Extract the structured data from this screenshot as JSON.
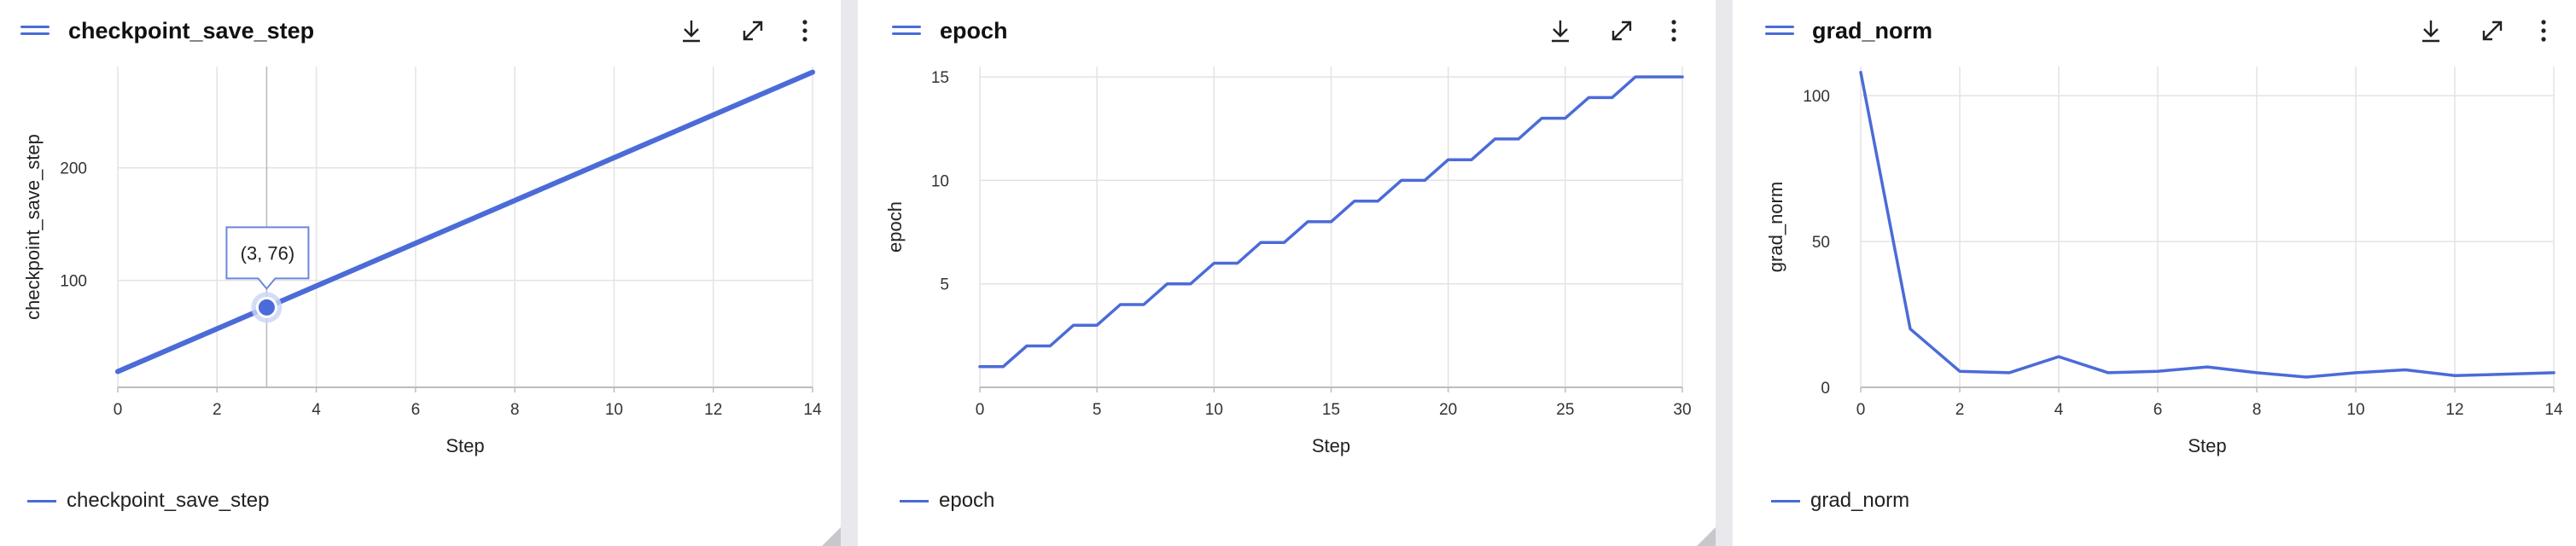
{
  "panels": [
    {
      "title": "checkpoint_save_step",
      "legend_label": "checkpoint_save_step",
      "tooltip": "(3, 76)"
    },
    {
      "title": "epoch",
      "legend_label": "epoch"
    },
    {
      "title": "grad_norm",
      "legend_label": "grad_norm"
    }
  ],
  "icons": {
    "drag": "drag-handle-icon",
    "download": "download-icon",
    "expand": "expand-icon",
    "more": "more-vertical-icon"
  },
  "colors": {
    "series": "#4b6bd8",
    "grid": "#e3e3e3",
    "axis": "#bdbdbd"
  },
  "chart_data": [
    {
      "type": "line",
      "title": "checkpoint_save_step",
      "xlabel": "Step",
      "ylabel": "checkpoint_save_step",
      "xlim": [
        0,
        14
      ],
      "ylim": [
        5,
        290
      ],
      "xticks": [
        0,
        2,
        4,
        6,
        8,
        10,
        12,
        14
      ],
      "yticks": [
        100,
        200
      ],
      "series": [
        {
          "name": "checkpoint_save_step",
          "x": [
            0,
            14
          ],
          "y": [
            19,
            285
          ]
        }
      ],
      "highlight": {
        "x": 3,
        "y": 76,
        "label": "(3, 76)"
      },
      "grid": true,
      "legend": "bottom-left"
    },
    {
      "type": "line",
      "title": "epoch",
      "xlabel": "Step",
      "ylabel": "epoch",
      "xlim": [
        0,
        30
      ],
      "ylim": [
        0,
        15.5
      ],
      "xticks": [
        0,
        5,
        10,
        15,
        20,
        25,
        30
      ],
      "yticks": [
        5,
        10,
        15
      ],
      "series": [
        {
          "name": "epoch",
          "x": [
            0,
            1,
            2,
            3,
            4,
            5,
            6,
            7,
            8,
            9,
            10,
            11,
            12,
            13,
            14,
            15,
            16,
            17,
            18,
            19,
            20,
            21,
            22,
            23,
            24,
            25,
            26,
            27,
            28,
            29,
            30
          ],
          "y": [
            1,
            1,
            2,
            2,
            3,
            3,
            4,
            4,
            5,
            5,
            6,
            6,
            7,
            7,
            8,
            8,
            9,
            9,
            10,
            10,
            11,
            11,
            12,
            12,
            13,
            13,
            14,
            14,
            15,
            15,
            15
          ]
        }
      ],
      "grid": true,
      "legend": "bottom-left"
    },
    {
      "type": "line",
      "title": "grad_norm",
      "xlabel": "Step",
      "ylabel": "grad_norm",
      "xlim": [
        0,
        14
      ],
      "ylim": [
        0,
        110
      ],
      "xticks": [
        0,
        2,
        4,
        6,
        8,
        10,
        12,
        14
      ],
      "yticks": [
        0,
        50,
        100
      ],
      "series": [
        {
          "name": "grad_norm",
          "x": [
            0,
            1,
            2,
            3,
            4,
            5,
            6,
            7,
            8,
            9,
            10,
            11,
            12,
            13,
            14
          ],
          "y": [
            108,
            20,
            5.5,
            5,
            10.5,
            5,
            5.5,
            7,
            5,
            3.5,
            5,
            6,
            4,
            4.5,
            5
          ]
        }
      ],
      "grid": true,
      "legend": "bottom-left"
    }
  ]
}
